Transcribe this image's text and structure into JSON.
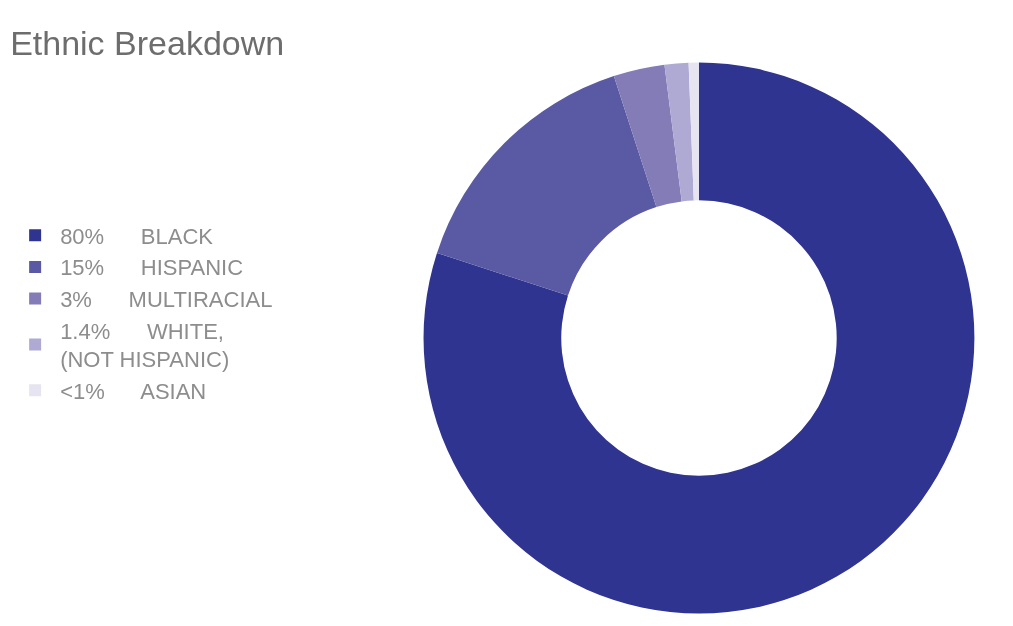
{
  "chart_data": {
    "type": "donut",
    "title": "Ethnic Breakdown",
    "categories": [
      "BLACK",
      "HISPANIC",
      "MULTIRACIAL",
      "WHITE,\n(NOT HISPANIC)",
      "ASIAN"
    ],
    "values": [
      80,
      15,
      3,
      1.4,
      0.6
    ],
    "value_labels": [
      "80%",
      "15%",
      "3%",
      "1.4%",
      "<1%"
    ],
    "colors": [
      "#2e3490",
      "#5a59a3",
      "#837cb7",
      "#aeaad3",
      "#e6e4f1"
    ],
    "legend": "left"
  }
}
